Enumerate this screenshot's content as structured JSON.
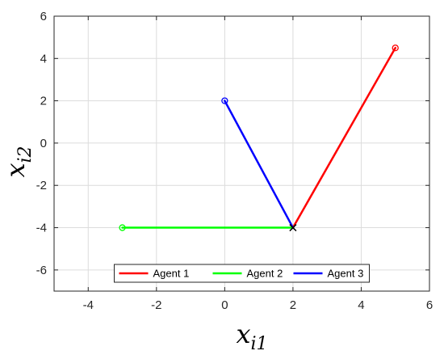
{
  "chart_data": {
    "type": "line",
    "xlim": [
      -5,
      6
    ],
    "ylim": [
      -7,
      6
    ],
    "x_ticks": [
      -4,
      -2,
      0,
      2,
      4,
      6
    ],
    "y_ticks": [
      -6,
      -4,
      -2,
      0,
      2,
      4,
      6
    ],
    "x_tick_labels": [
      "-4",
      "-2",
      "0",
      "2",
      "4",
      "6"
    ],
    "y_tick_labels": [
      "-6",
      "-4",
      "-2",
      "0",
      "2",
      "4",
      "6"
    ],
    "xlabel": {
      "base": "x",
      "sub": "i1"
    },
    "ylabel": {
      "base": "x",
      "sub": "i2"
    },
    "grid": true,
    "legend_placement": "bottom-center",
    "legend_orientation": "horizontal",
    "series": [
      {
        "name": "Agent 1",
        "color": "#ff0000",
        "start": [
          5,
          4.5
        ],
        "end": [
          2,
          -4
        ]
      },
      {
        "name": "Agent 2",
        "color": "#00ff00",
        "start": [
          -3,
          -4
        ],
        "end": [
          2,
          -4
        ]
      },
      {
        "name": "Agent 3",
        "color": "#0000ff",
        "start": [
          0,
          2
        ],
        "end": [
          2,
          -4
        ]
      }
    ],
    "end_marker": {
      "symbol": "x",
      "at": [
        2,
        -4
      ],
      "color": "#000000"
    },
    "start_marker": "circle"
  }
}
